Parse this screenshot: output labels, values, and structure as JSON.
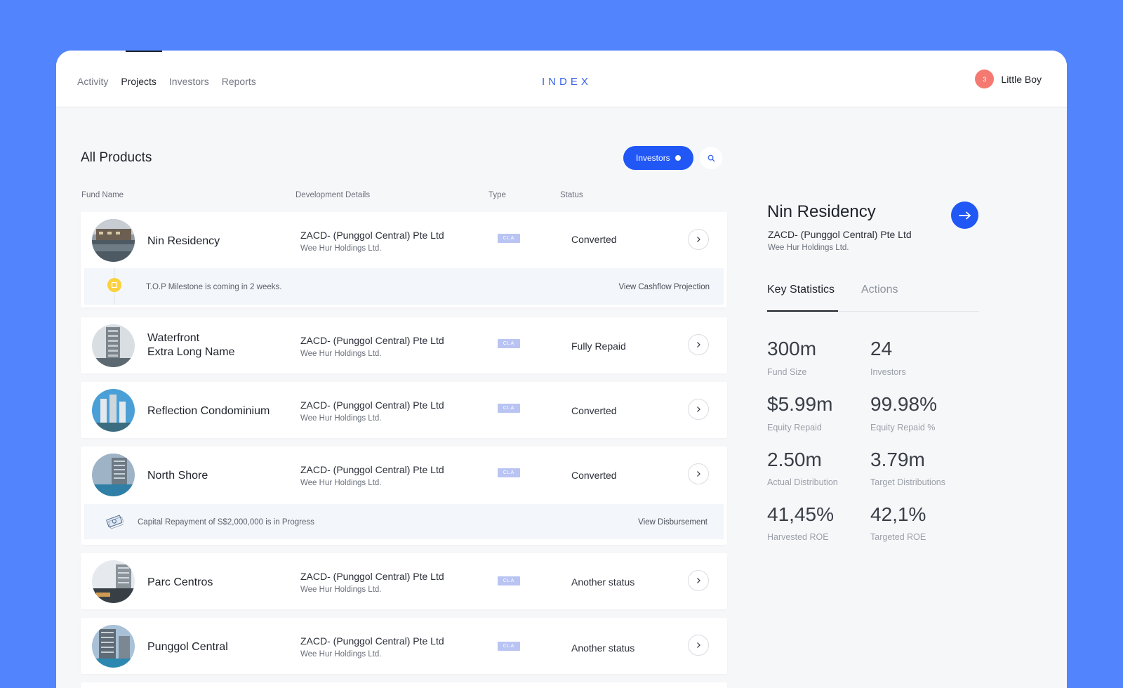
{
  "header": {
    "nav": [
      "Activity",
      "Projects",
      "Investors",
      "Reports"
    ],
    "active_nav": "Projects",
    "brand": "INDEX",
    "user": {
      "badge": "3",
      "name": "Little Boy"
    }
  },
  "main": {
    "title": "All Products",
    "filter_pill": "Investors",
    "columns": [
      "Fund Name",
      "Development Details",
      "Type",
      "Status"
    ],
    "rows": [
      {
        "name": "Nin Residency",
        "dev": "ZACD- (Punggol Central) Pte Ltd",
        "dev_sub": "Wee Hur Holdings Ltd.",
        "type": "CLA",
        "status": "Converted",
        "note": {
          "text": "T.O.P Milestone is coming in 2 weeks.",
          "link": "View Cashflow Projection",
          "icon": "milestone-icon"
        }
      },
      {
        "name_line1": "Waterfront",
        "name_line2": "Extra Long Name",
        "dev": "ZACD- (Punggol Central) Pte Ltd",
        "dev_sub": "Wee Hur Holdings Ltd.",
        "type": "CLA",
        "status": "Fully Repaid"
      },
      {
        "name": "Reflection Condominium",
        "dev": "ZACD- (Punggol Central) Pte Ltd",
        "dev_sub": "Wee Hur Holdings Ltd.",
        "type": "CLA",
        "status": "Converted"
      },
      {
        "name": "North Shore",
        "dev": "ZACD- (Punggol Central) Pte Ltd",
        "dev_sub": "Wee Hur Holdings Ltd.",
        "type": "CLA",
        "status": "Converted",
        "note": {
          "text": "Capital Repayment of S$2,000,000 is in Progress",
          "link": "View Disbursement",
          "icon": "money-icon"
        }
      },
      {
        "name": "Parc Centros",
        "dev": "ZACD- (Punggol Central) Pte Ltd",
        "dev_sub": "Wee Hur Holdings Ltd.",
        "type": "CLA",
        "status": "Another status"
      },
      {
        "name": "Punggol Central",
        "dev": "ZACD- (Punggol Central) Pte Ltd",
        "dev_sub": "Wee Hur Holdings Ltd.",
        "type": "CLA",
        "status": "Another status"
      }
    ]
  },
  "detail": {
    "title": "Nin Residency",
    "subtitle": "ZACD- (Punggol Central) Pte Ltd",
    "subtitle2": "Wee Hur Holdings Ltd.",
    "tabs": [
      "Key Statistics",
      "Actions"
    ],
    "stats": [
      {
        "value": "300m",
        "label": "Fund Size"
      },
      {
        "value": "24",
        "label": "Investors"
      },
      {
        "value": "$5.99m",
        "label": "Equity Repaid"
      },
      {
        "value": "99.98%",
        "label": "Equity Repaid %"
      },
      {
        "value": "2.50m",
        "label": "Actual Distribution"
      },
      {
        "value": "3.79m",
        "label": "Target Distributions"
      },
      {
        "value": "41,45%",
        "label": "Harvested ROE"
      },
      {
        "value": "42,1%",
        "label": "Targeted ROE"
      }
    ]
  },
  "colors": {
    "background": "#5284fe",
    "accent": "#2057f5",
    "brand": "#3a63e8",
    "avatar": "#f47a71",
    "tag": "#b9c4f2"
  }
}
